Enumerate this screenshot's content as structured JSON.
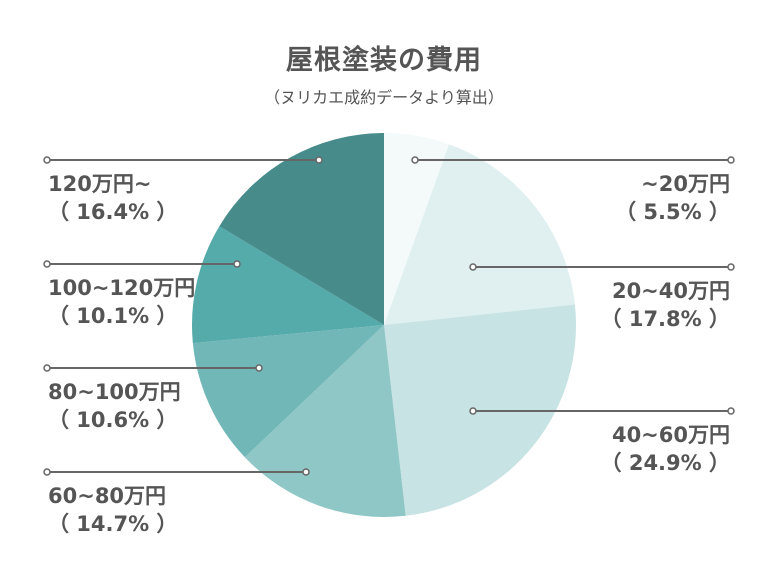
{
  "header": {
    "title": "屋根塗装の費用",
    "subtitle": "（ヌリカエ成約データより算出）"
  },
  "chart_data": {
    "type": "pie",
    "title": "屋根塗装の費用",
    "subtitle": "（ヌリカエ成約データより算出）",
    "start_angle": "12 o'clock",
    "direction": "clockwise",
    "categories": [
      "~20万円",
      "20~40万円",
      "40~60万円",
      "60~80万円",
      "80~100万円",
      "100~120万円",
      "120万円~"
    ],
    "values": [
      5.5,
      17.8,
      24.9,
      14.7,
      10.6,
      10.1,
      16.4
    ],
    "unit": "%",
    "colors": [
      "#f4fafa",
      "#e0f0f0",
      "#c8e3e3",
      "#8fc7c7",
      "#72b7b7",
      "#55aaaa",
      "#478b8b"
    ],
    "legend": "callout labels with leader lines"
  },
  "labels": [
    {
      "name": "~20万円",
      "pct": "（ 5.5% ）"
    },
    {
      "name": "20~40万円",
      "pct": "（ 17.8% ）"
    },
    {
      "name": "40~60万円",
      "pct": "（ 24.9% ）"
    },
    {
      "name": "60~80万円",
      "pct": "（ 14.7% ）"
    },
    {
      "name": "80~100万円",
      "pct": "（ 10.6% ）"
    },
    {
      "name": "100~120万円",
      "pct": "（ 10.1% ）"
    },
    {
      "name": "120万円~",
      "pct": "（ 16.4% ）"
    }
  ],
  "colors": {
    "text": "#555555",
    "leader": "#666666"
  }
}
